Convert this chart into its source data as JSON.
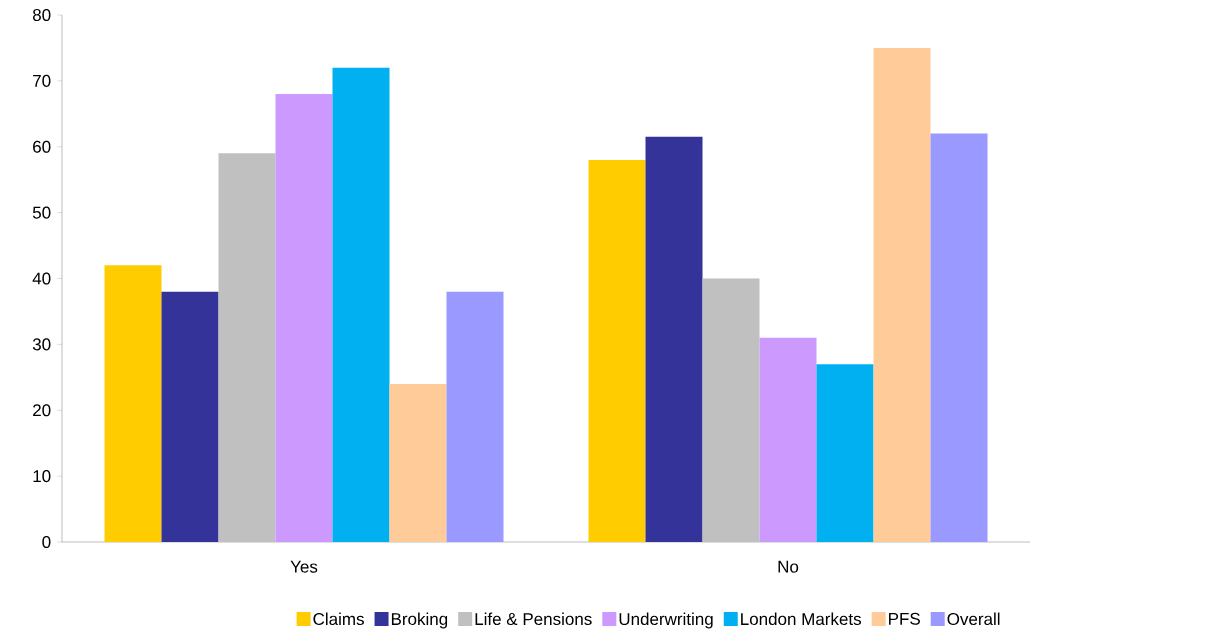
{
  "chart_data": {
    "type": "bar",
    "categories": [
      "Yes",
      "No"
    ],
    "series": [
      {
        "name": "Claims",
        "color": "#ffcc00",
        "values": [
          42,
          58
        ]
      },
      {
        "name": "Broking",
        "color": "#333399",
        "values": [
          38,
          61.5
        ]
      },
      {
        "name": "Life & Pensions",
        "color": "#c0c0c0",
        "values": [
          59,
          40
        ]
      },
      {
        "name": "Underwriting",
        "color": "#cc99ff",
        "values": [
          68,
          31
        ]
      },
      {
        "name": "London Markets",
        "color": "#00b0f0",
        "values": [
          72,
          27
        ]
      },
      {
        "name": "PFS",
        "color": "#ffcc99",
        "values": [
          24,
          75
        ]
      },
      {
        "name": "Overall",
        "color": "#9999ff",
        "values": [
          38,
          62
        ]
      }
    ],
    "ylim": [
      0,
      80
    ],
    "yticks": [
      0,
      10,
      20,
      30,
      40,
      50,
      60,
      70,
      80
    ],
    "grid": false,
    "legend": "bottom"
  }
}
